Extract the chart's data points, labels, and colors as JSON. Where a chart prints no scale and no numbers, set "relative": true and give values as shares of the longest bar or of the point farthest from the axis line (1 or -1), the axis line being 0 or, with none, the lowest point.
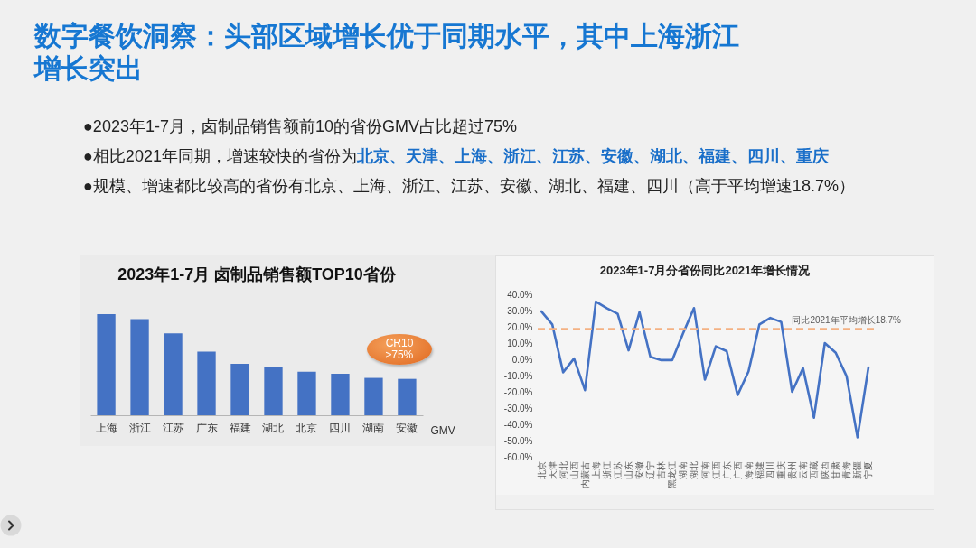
{
  "chart_data": [
    {
      "type": "other",
      "title": "数字餐饮洞察：头部区域增长优于同期水平，其中上海浙江增长突出",
      "annotations": [
        "●2023年1-7月，卤制品销售额前10的省份GMV占比超过75%",
        "●相比2021年同期，增速较快的省份为",
        "北京、天津、上海、浙江、江苏、安徽、湖北、福建、四川、重庆",
        "●规模、增速都比较高的省份有北京、上海、浙江、江苏、安徽、湖北、福建、四川（高于平均增速18.7%）"
      ]
    },
    {
      "type": "bar",
      "title": "2023年1-7月 卤制品销售额TOP10省份",
      "xlabel": "GMV",
      "categories": [
        "上海",
        "浙江",
        "江苏",
        "广东",
        "福建",
        "湖北",
        "北京",
        "四川",
        "湖南",
        "安徽"
      ],
      "values": [
        1,
        0.95,
        0.81,
        0.63,
        0.51,
        0.48,
        0.43,
        0.41,
        0.37,
        0.36
      ],
      "color": "#4472c4",
      "relative": true,
      "annotations": [
        "CR10 ≥75%"
      ]
    },
    {
      "type": "line",
      "title": "2023年1-7月分省份同比2021年增长情况",
      "categories": [
        "北京",
        "天津",
        "河北",
        "山西",
        "内蒙古",
        "上海",
        "浙江",
        "江苏",
        "山东",
        "安徽",
        "辽宁",
        "吉林",
        "黑龙江",
        "湖南",
        "湖北",
        "河南",
        "江西",
        "广东",
        "广西",
        "海南",
        "福建",
        "四川",
        "重庆",
        "贵州",
        "云南",
        "西藏",
        "陕西",
        "甘肃",
        "青海",
        "新疆",
        "宁夏"
      ],
      "values": [
        29.5,
        21.5,
        -8,
        0.5,
        -19,
        35.5,
        31.5,
        28,
        5.5,
        29,
        1.5,
        -0.5,
        -0.5,
        16,
        31.5,
        -12.5,
        8,
        5,
        -22,
        -7.5,
        21.5,
        25.5,
        23,
        -20,
        -5.5,
        -36,
        10,
        4,
        -10.5,
        -48,
        -5
      ],
      "color": "#4472c4",
      "ylim": [
        -60,
        40
      ],
      "yticks": [
        {
          "value": 40,
          "label": "40.0%"
        },
        {
          "value": 30,
          "label": "30.0%"
        },
        {
          "value": 20,
          "label": "20.0%"
        },
        {
          "value": 10,
          "label": "10.0%"
        },
        {
          "value": 0,
          "label": "0.0%"
        },
        {
          "value": -10,
          "label": "-10.0%"
        },
        {
          "value": -20,
          "label": "-20.0%"
        },
        {
          "value": -30,
          "label": "-30.0%"
        },
        {
          "value": -40,
          "label": "-40.0%"
        },
        {
          "value": -50,
          "label": "-50.0%"
        },
        {
          "value": -60,
          "label": "-60.0%"
        }
      ],
      "ref_lines": [
        {
          "axis": "y",
          "value": 18.7,
          "label": "同比2021年平均增长18.7%",
          "color": "#f4b183",
          "line_style": "dashed"
        }
      ]
    }
  ]
}
